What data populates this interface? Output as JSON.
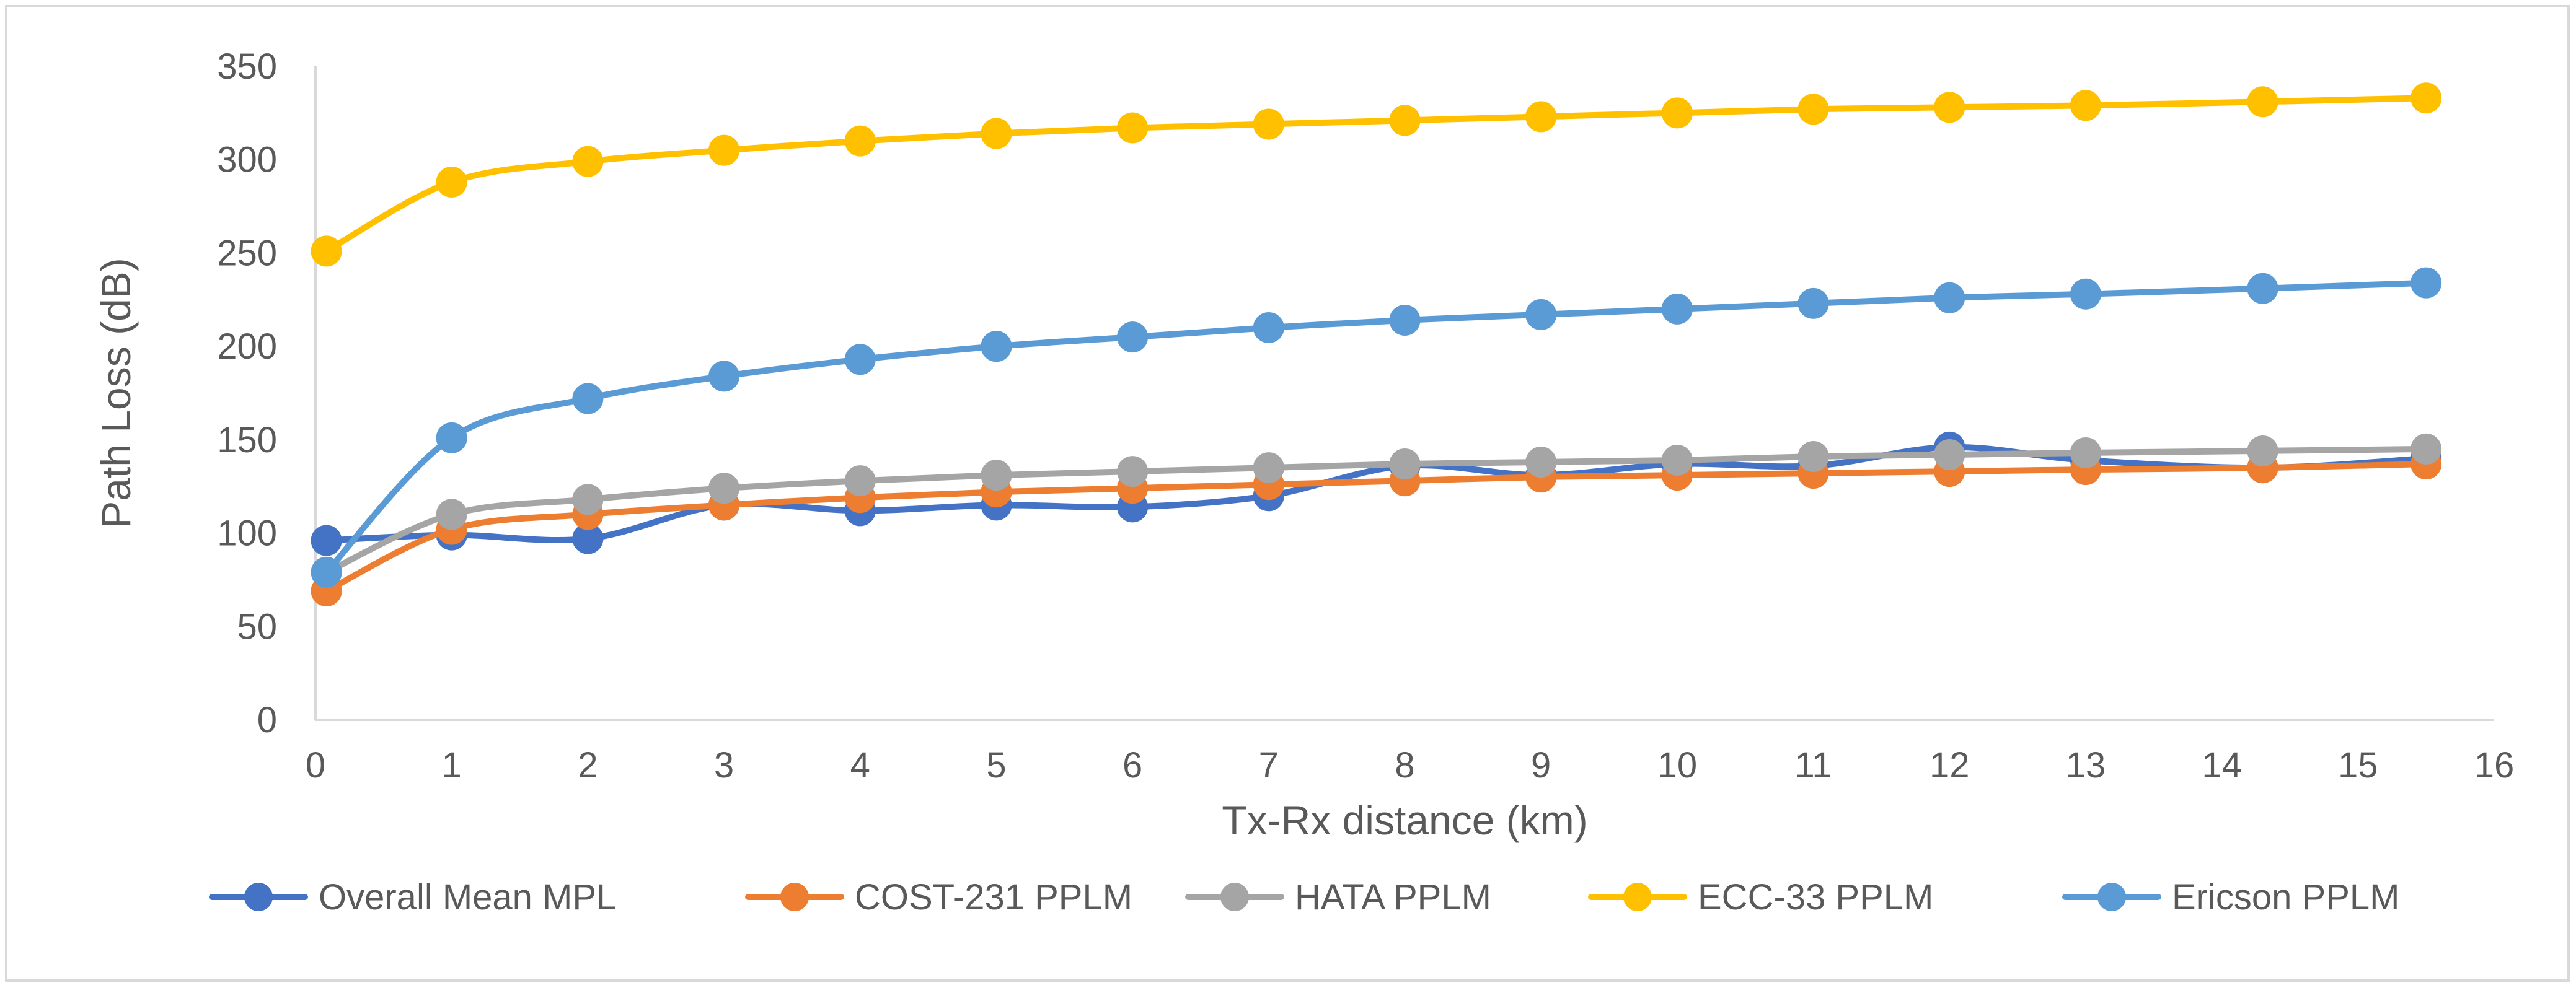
{
  "chart_data": {
    "type": "line",
    "title": "",
    "xlabel": "Tx-Rx distance (km)",
    "ylabel": "Path Loss (dB)",
    "xlim": [
      0,
      16
    ],
    "ylim": [
      0,
      350
    ],
    "xticks": [
      0,
      1,
      2,
      3,
      4,
      5,
      6,
      7,
      8,
      9,
      10,
      11,
      12,
      13,
      14,
      15,
      16
    ],
    "yticks": [
      0,
      50,
      100,
      150,
      200,
      250,
      300,
      350
    ],
    "grid": false,
    "legend_position": "bottom",
    "x": [
      0.08,
      1,
      2,
      3,
      4,
      5,
      6,
      7,
      8,
      9,
      10,
      11,
      12,
      13,
      14.3,
      15.5
    ],
    "series": [
      {
        "name": "Overall Mean MPL",
        "color": "#4472c4",
        "values": [
          96,
          99,
          97,
          115,
          112,
          115,
          114,
          120,
          136,
          131,
          137,
          136,
          146,
          139,
          135,
          140
        ]
      },
      {
        "name": "COST-231 PPLM",
        "color": "#ed7d31",
        "values": [
          69,
          102,
          110,
          115,
          119,
          122,
          124,
          126,
          128,
          130,
          131,
          132,
          133,
          134,
          135,
          137
        ]
      },
      {
        "name": "HATA PPLM",
        "color": "#a5a5a5",
        "values": [
          79,
          110,
          118,
          124,
          128,
          131,
          133,
          135,
          137,
          138,
          139,
          141,
          142,
          143,
          144,
          145
        ]
      },
      {
        "name": "ECC-33 PPLM",
        "color": "#ffc000",
        "values": [
          251,
          288,
          299,
          305,
          310,
          314,
          317,
          319,
          321,
          323,
          325,
          327,
          328,
          329,
          331,
          333
        ]
      },
      {
        "name": "Ericson PPLM",
        "color": "#5b9bd5",
        "values": [
          79,
          151,
          172,
          184,
          193,
          200,
          205,
          210,
          214,
          217,
          220,
          223,
          226,
          228,
          231,
          234
        ]
      }
    ]
  }
}
